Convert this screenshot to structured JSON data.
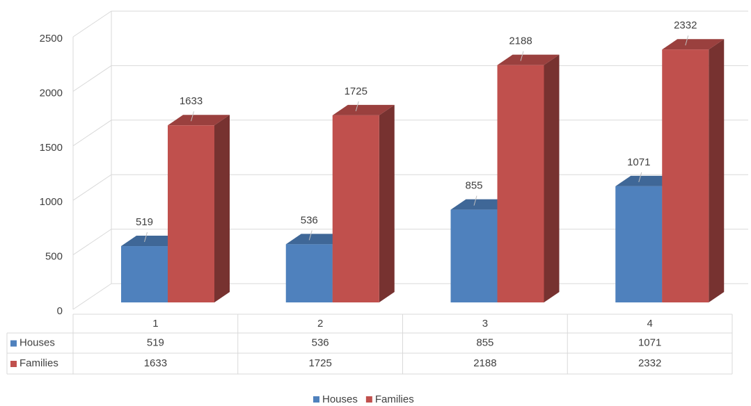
{
  "chart_data": {
    "type": "bar3d",
    "categories": [
      "1",
      "2",
      "3",
      "4"
    ],
    "series": [
      {
        "name": "Houses",
        "color": "#4f81bd",
        "values": [
          519,
          536,
          855,
          1071
        ]
      },
      {
        "name": "Families",
        "color": "#c0504d",
        "values": [
          1633,
          1725,
          2188,
          2332
        ]
      }
    ],
    "ylim": [
      0,
      2500
    ],
    "yticks": [
      0,
      500,
      1000,
      1500,
      2000,
      2500
    ],
    "grid": true,
    "data_table": true,
    "legend": "bottom"
  }
}
